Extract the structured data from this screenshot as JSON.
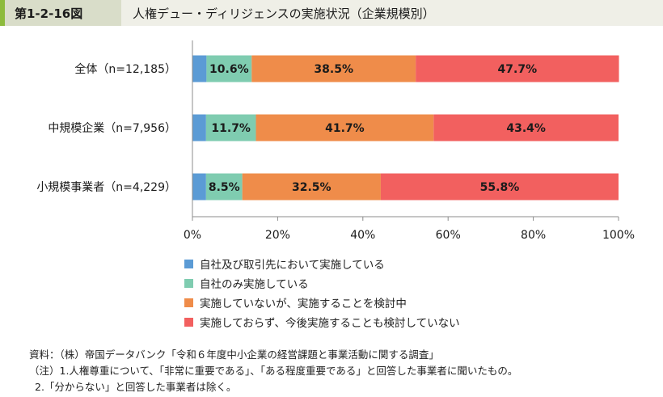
{
  "figure": {
    "label": "第1-2-16図",
    "title": "人権デュー・ディリジェンスの実施状況（企業規模別）"
  },
  "chart_data": {
    "type": "bar",
    "orientation": "horizontal",
    "stacked": true,
    "categories": [
      "全体（n=12,185）",
      "中規模企業（n=7,956）",
      "小規模事業者（n=4,229）"
    ],
    "series": [
      {
        "name": "自社及び取引先において実施している",
        "color": "#5b9bd5",
        "values": [
          3.3,
          3.2,
          3.2
        ],
        "label_values": [
          "",
          "",
          ""
        ]
      },
      {
        "name": "自社のみ実施している",
        "color": "#7fccb0",
        "values": [
          10.6,
          11.7,
          8.5
        ],
        "label_values": [
          "10.6%",
          "11.7%",
          "8.5%"
        ]
      },
      {
        "name": "実施していないが、実施することを検討中",
        "color": "#ef8c4a",
        "values": [
          38.5,
          41.7,
          32.5
        ],
        "label_values": [
          "38.5%",
          "41.7%",
          "32.5%"
        ]
      },
      {
        "name": "実施しておらず、今後実施することも検討していない",
        "color": "#f2605f",
        "values": [
          47.7,
          43.4,
          55.8
        ],
        "label_values": [
          "47.7%",
          "43.4%",
          "55.8%"
        ]
      }
    ],
    "xlim": [
      0,
      100
    ],
    "xticks": [
      "0%",
      "20%",
      "40%",
      "60%",
      "80%",
      "100%"
    ],
    "grid": false,
    "legend_position": "bottom-left"
  },
  "notes": {
    "source": "資料：（株）帝国データバンク「令和６年度中小企業の経営課題と事業活動に関する調査」",
    "note1": "（注）1.人権尊重について、「非常に重要である」、「ある程度重要である」と回答した事業者に聞いたもの。",
    "note2": "2.「分からない」と回答した事業者は除く。"
  }
}
